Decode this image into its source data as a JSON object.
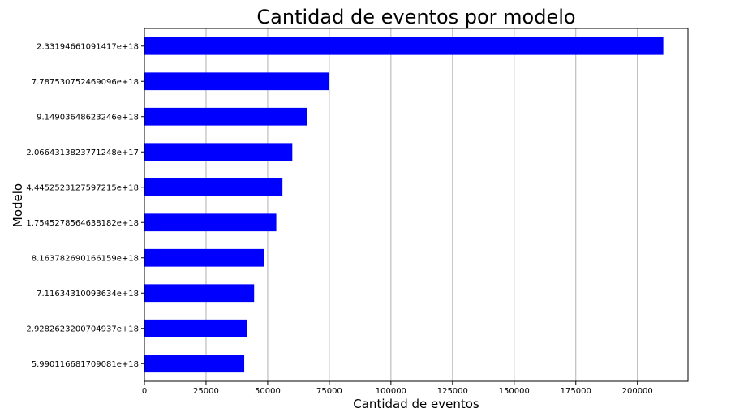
{
  "chart_data": {
    "type": "bar",
    "orientation": "horizontal",
    "title": "Cantidad de eventos por modelo",
    "xlabel": "Cantidad de eventos",
    "ylabel": "Modelo",
    "categories": [
      "2.33194661091417e+18",
      "7.787530752469096e+18",
      "9.14903648623246e+18",
      "2.0664313823771248e+17",
      "4.4452523127597215e+18",
      "1.7545278564638182e+18",
      "8.163782690166159e+18",
      "7.11634310093634e+18",
      "2.9282623200704937e+18",
      "5.990116681709081e+18"
    ],
    "values": [
      210500,
      75000,
      66000,
      60000,
      56000,
      53500,
      48500,
      44500,
      41500,
      40500
    ],
    "xlim": [
      0,
      220500
    ],
    "xticks": [
      0,
      25000,
      50000,
      75000,
      100000,
      125000,
      150000,
      175000,
      200000
    ],
    "xtick_labels": [
      "0",
      "25000",
      "50000",
      "75000",
      "100000",
      "125000",
      "150000",
      "175000",
      "200000"
    ],
    "grid": "x",
    "bar_color": "#0000ff",
    "grid_color": "#b0b0b0"
  }
}
